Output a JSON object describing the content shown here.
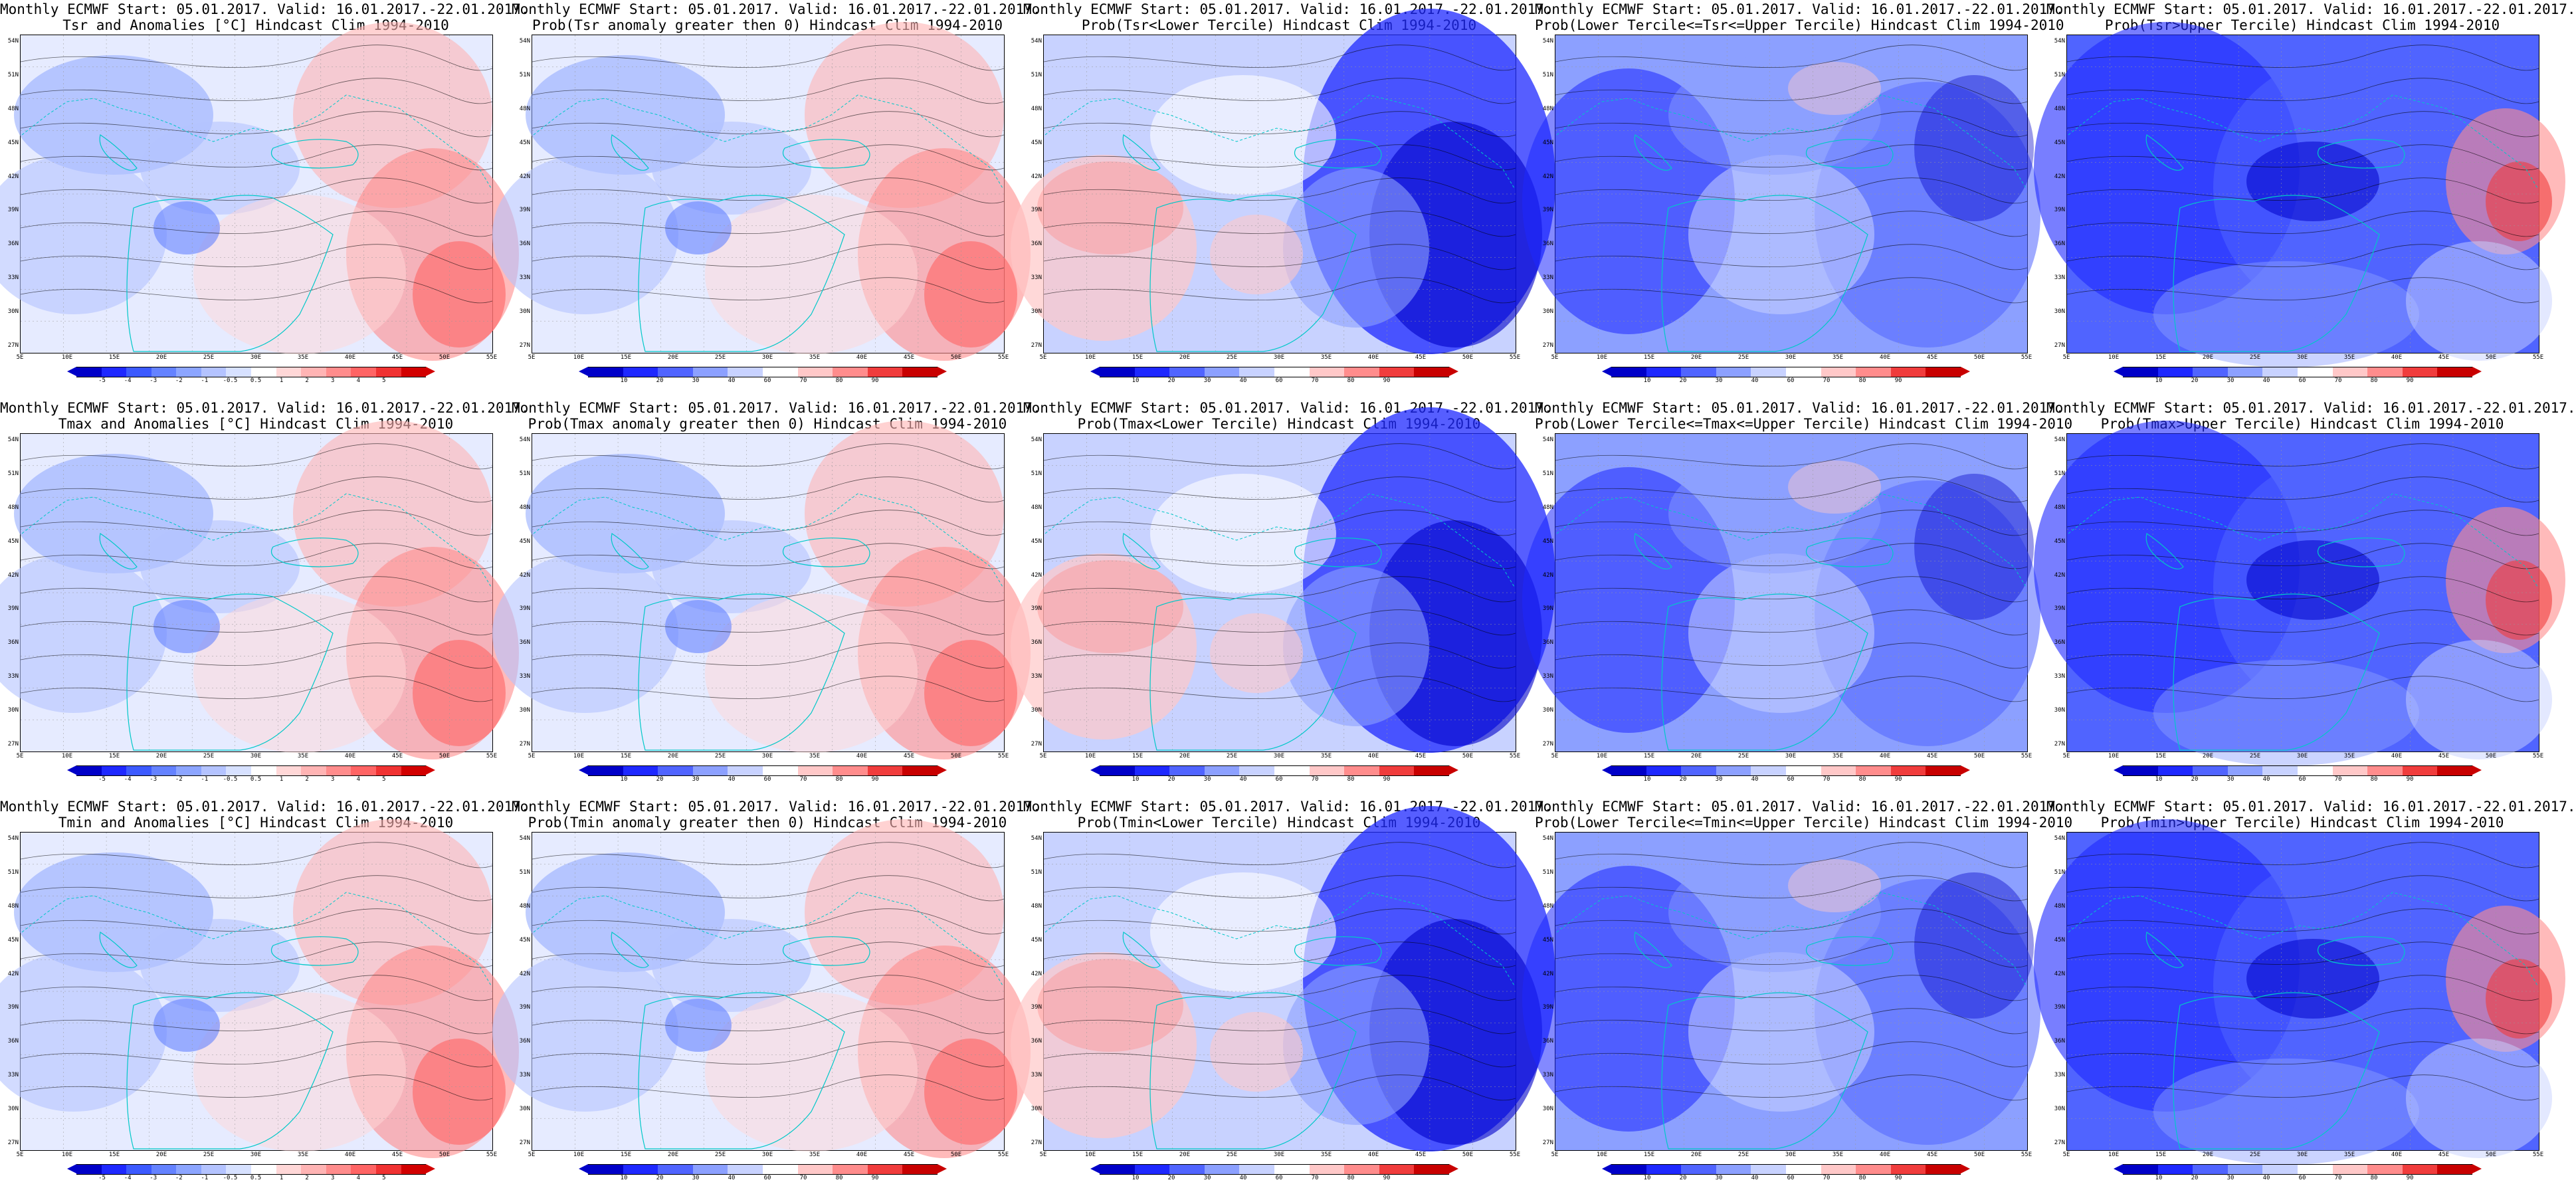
{
  "panels": [
    {
      "title1": "Monthly ECMWF Start: 05.01.2017. Valid: 16.01.2017.-22.01.2017.",
      "title2": "Tsr and Anomalies [°C] Hindcast Clim 1994-2010",
      "scale": "anom",
      "mode": "anom"
    },
    {
      "title1": "Monthly ECMWF Start: 05.01.2017. Valid: 16.01.2017.-22.01.2017.",
      "title2": "Prob(Tsr anomaly greater then 0) Hindcast Clim 1994-2010",
      "scale": "prob",
      "mode": "anom"
    },
    {
      "title1": "Monthly ECMWF Start: 05.01.2017. Valid: 16.01.2017.-22.01.2017.",
      "title2": "Prob(Tsr<Lower Tercile) Hindcast Clim 1994-2010",
      "scale": "prob",
      "mode": "lower"
    },
    {
      "title1": "Monthly ECMWF Start: 05.01.2017. Valid: 16.01.2017.-22.01.2017.",
      "title2": "Prob(Lower Tercile<=Tsr<=Upper Tercile) Hindcast Clim 1994-2010",
      "scale": "prob",
      "mode": "middle"
    },
    {
      "title1": "Monthly ECMWF Start: 05.01.2017. Valid: 16.01.2017.-22.01.2017.",
      "title2": "Prob(Tsr>Upper Tercile) Hindcast Clim 1994-2010",
      "scale": "prob",
      "mode": "upper"
    },
    {
      "title1": "Monthly ECMWF Start: 05.01.2017. Valid: 16.01.2017.-22.01.2017.",
      "title2": "Tmax and Anomalies [°C] Hindcast Clim 1994-2010",
      "scale": "anom",
      "mode": "anom"
    },
    {
      "title1": "Monthly ECMWF Start: 05.01.2017. Valid: 16.01.2017.-22.01.2017.",
      "title2": "Prob(Tmax anomaly greater then 0) Hindcast Clim 1994-2010",
      "scale": "prob",
      "mode": "anom"
    },
    {
      "title1": "Monthly ECMWF Start: 05.01.2017. Valid: 16.01.2017.-22.01.2017.",
      "title2": "Prob(Tmax<Lower Tercile) Hindcast Clim 1994-2010",
      "scale": "prob",
      "mode": "lower"
    },
    {
      "title1": "Monthly ECMWF Start: 05.01.2017. Valid: 16.01.2017.-22.01.2017.",
      "title2": "Prob(Lower Tercile<=Tmax<=Upper Tercile) Hindcast Clim 1994-2010",
      "scale": "prob",
      "mode": "middle"
    },
    {
      "title1": "Monthly ECMWF Start: 05.01.2017. Valid: 16.01.2017.-22.01.2017.",
      "title2": "Prob(Tmax>Upper Tercile) Hindcast Clim 1994-2010",
      "scale": "prob",
      "mode": "upper"
    },
    {
      "title1": "Monthly ECMWF Start: 05.01.2017. Valid: 16.01.2017.-22.01.2017.",
      "title2": "Tmin and Anomalies [°C] Hindcast Clim 1994-2010",
      "scale": "anom",
      "mode": "anom"
    },
    {
      "title1": "Monthly ECMWF Start: 05.01.2017. Valid: 16.01.2017.-22.01.2017.",
      "title2": "Prob(Tmin anomaly greater then 0) Hindcast Clim 1994-2010",
      "scale": "prob",
      "mode": "anom"
    },
    {
      "title1": "Monthly ECMWF Start: 05.01.2017. Valid: 16.01.2017.-22.01.2017.",
      "title2": "Prob(Tmin<Lower Tercile) Hindcast Clim 1994-2010",
      "scale": "prob",
      "mode": "lower"
    },
    {
      "title1": "Monthly ECMWF Start: 05.01.2017. Valid: 16.01.2017.-22.01.2017.",
      "title2": "Prob(Lower Tercile<=Tmin<=Upper Tercile) Hindcast Clim 1994-2010",
      "scale": "prob",
      "mode": "middle"
    },
    {
      "title1": "Monthly ECMWF Start: 05.01.2017. Valid: 16.01.2017.-22.01.2017.",
      "title2": "Prob(Tmin>Upper Tercile) Hindcast Clim 1994-2010",
      "scale": "prob",
      "mode": "upper"
    }
  ],
  "lat_labels": [
    "54N",
    "51N",
    "48N",
    "45N",
    "42N",
    "39N",
    "36N",
    "33N",
    "30N",
    "27N"
  ],
  "lon_labels": [
    "5E",
    "10E",
    "15E",
    "20E",
    "25E",
    "30E",
    "35E",
    "40E",
    "45E",
    "50E",
    "55E"
  ],
  "scales": {
    "anom": {
      "labels": [
        "-5",
        "-4",
        "-3",
        "-2",
        "-1",
        "-0.5",
        "0.5",
        "1",
        "2",
        "3",
        "4",
        "5"
      ],
      "colors": [
        "#0000c8",
        "#1e28ff",
        "#3c5aff",
        "#6482ff",
        "#8ca5ff",
        "#b4c3ff",
        "#d7e1ff",
        "#ffffff",
        "#ffd7d7",
        "#ffb4b4",
        "#ff8c8c",
        "#ff6464",
        "#f03232",
        "#d20000"
      ]
    },
    "prob": {
      "labels": [
        "10",
        "20",
        "30",
        "40",
        "60",
        "70",
        "80",
        "90"
      ],
      "colors": [
        "#0000c8",
        "#1e28ff",
        "#5064ff",
        "#8ca0ff",
        "#c8d2ff",
        "#ffffff",
        "#ffc8c8",
        "#ff8c8c",
        "#f03c3c",
        "#c80000"
      ]
    }
  },
  "colors": {
    "coast": "#00c8c8",
    "contour": "#000000"
  }
}
